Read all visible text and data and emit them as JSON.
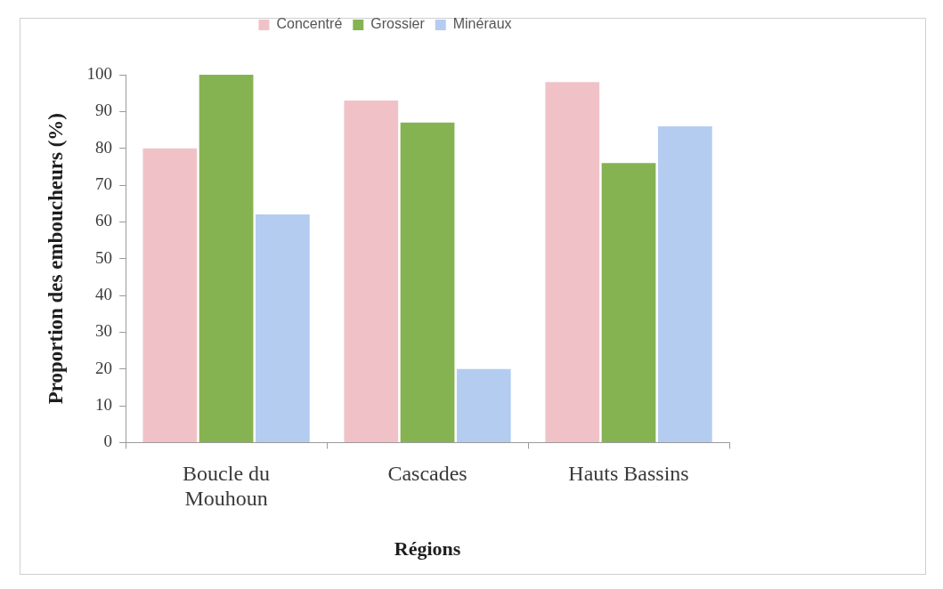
{
  "chart_data": {
    "type": "bar",
    "xlabel": "Régions",
    "ylabel": "Proportion des emboucheurs (%)",
    "categories": [
      "Boucle du Mouhoun",
      "Cascades",
      "Hauts Bassins"
    ],
    "series": [
      {
        "name": "Concentré",
        "color": "#f0c2c8",
        "values": [
          80,
          93,
          98
        ]
      },
      {
        "name": "Grossier",
        "color": "#86b352",
        "values": [
          100,
          87,
          76
        ]
      },
      {
        "name": "Minéraux",
        "color": "#b4ccf0",
        "values": [
          62,
          20,
          86
        ]
      }
    ],
    "ylim": [
      0,
      100
    ],
    "yticks": [
      0,
      10,
      20,
      30,
      40,
      50,
      60,
      70,
      80,
      90,
      100
    ],
    "grid": false,
    "legend": "top"
  }
}
